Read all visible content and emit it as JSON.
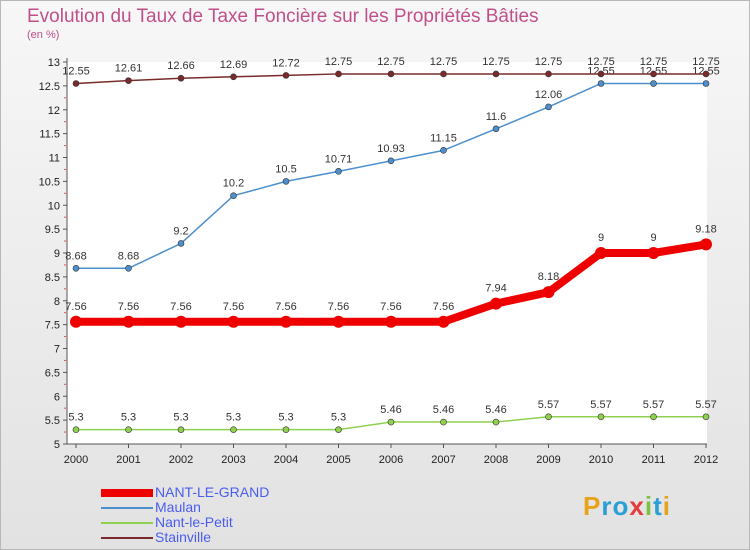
{
  "header": {
    "title": "Evolution du Taux de Taxe Foncière sur les Propriétés Bâties",
    "unit_label": "(en %)"
  },
  "logo": {
    "letters": [
      "P",
      "r",
      "o",
      "x",
      "i",
      "t",
      "i"
    ],
    "colors": [
      "#e8a21c",
      "#2a9fd6",
      "#2a9fd6",
      "#e23c3c",
      "#7cc242",
      "#2a9fd6",
      "#e8a21c"
    ]
  },
  "chart_data": {
    "type": "line",
    "title": "Evolution du Taux de Taxe Foncière sur les Propriétés Bâties",
    "ylabel": "(en %)",
    "xlabel": "",
    "x": [
      "2000",
      "2001",
      "2002",
      "2003",
      "2004",
      "2005",
      "2006",
      "2007",
      "2008",
      "2009",
      "2010",
      "2011",
      "2012"
    ],
    "ylim": [
      5,
      13
    ],
    "yticks": [
      "5",
      "5.5",
      "6",
      "6.5",
      "7",
      "7.5",
      "8",
      "8.5",
      "9",
      "9.5",
      "10",
      "10.5",
      "11",
      "11.5",
      "12",
      "12.5",
      "13"
    ],
    "legend_position": "bottom-left",
    "series": [
      {
        "name": "NANT-LE-GRAND",
        "color": "#ee0000",
        "emphasis": true,
        "values": [
          7.56,
          7.56,
          7.56,
          7.56,
          7.56,
          7.56,
          7.56,
          7.56,
          7.94,
          8.18,
          9,
          9,
          9.18
        ],
        "labels": [
          "7.56",
          "7.56",
          "7.56",
          "7.56",
          "7.56",
          "7.56",
          "7.56",
          "7.56",
          "7.94",
          "8.18",
          "9",
          "9",
          "9.18"
        ]
      },
      {
        "name": "Maulan",
        "color": "#4d8fcc",
        "emphasis": false,
        "values": [
          8.68,
          8.68,
          9.2,
          10.2,
          10.5,
          10.71,
          10.93,
          11.15,
          11.6,
          12.06,
          12.55,
          12.55,
          12.55
        ],
        "labels": [
          "8.68",
          "8.68",
          "9.2",
          "10.2",
          "10.5",
          "10.71",
          "10.93",
          "11.15",
          "11.6",
          "12.06",
          "12.55",
          "12.55",
          "12.55"
        ]
      },
      {
        "name": "Nant-le-Petit",
        "color": "#8fd14f",
        "emphasis": false,
        "values": [
          5.3,
          5.3,
          5.3,
          5.3,
          5.3,
          5.3,
          5.46,
          5.46,
          5.46,
          5.57,
          5.57,
          5.57,
          5.57
        ],
        "labels": [
          "5.3",
          "5.3",
          "5.3",
          "5.3",
          "5.3",
          "5.3",
          "5.46",
          "5.46",
          "5.46",
          "5.57",
          "5.57",
          "5.57",
          "5.57"
        ]
      },
      {
        "name": "Stainville",
        "color": "#7a2a2a",
        "emphasis": false,
        "values": [
          12.55,
          12.61,
          12.66,
          12.69,
          12.72,
          12.75,
          12.75,
          12.75,
          12.75,
          12.75,
          12.75,
          12.75,
          12.75
        ],
        "labels": [
          "12.55",
          "12.61",
          "12.66",
          "12.69",
          "12.72",
          "12.75",
          "12.75",
          "12.75",
          "12.75",
          "12.75",
          "12.75",
          "12.75",
          "12.75"
        ]
      }
    ]
  }
}
